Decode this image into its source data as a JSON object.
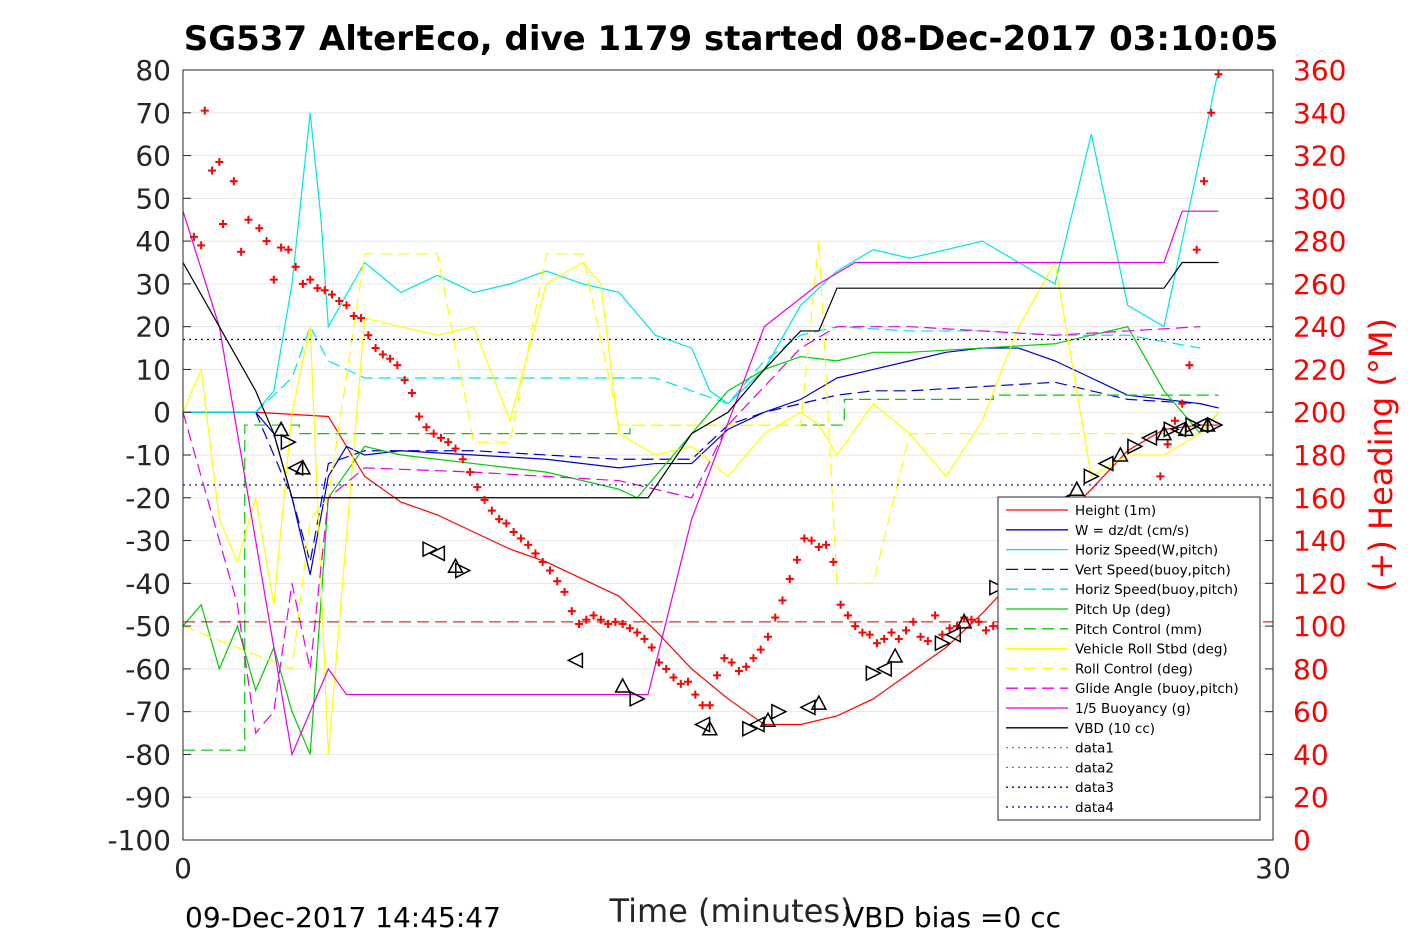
{
  "chart_data": {
    "type": "line",
    "title": "SG537 AlterEco, dive 1179 started 08-Dec-2017 03:10:05",
    "xlabel": "Time (minutes)",
    "ylabel_right": "(+) Heading (°M)",
    "xlim": [
      0,
      30
    ],
    "ylim_left": [
      -100,
      80
    ],
    "ylim_right": [
      0,
      360
    ],
    "x_ticks": [
      "0",
      "30"
    ],
    "y_ticks_left": [
      "80",
      "70",
      "60",
      "50",
      "40",
      "30",
      "20",
      "10",
      "0",
      "-10",
      "-20",
      "-30",
      "-40",
      "-50",
      "-60",
      "-70",
      "-80",
      "-90",
      "-100"
    ],
    "y_ticks_right": [
      "360",
      "340",
      "320",
      "300",
      "280",
      "260",
      "240",
      "220",
      "200",
      "180",
      "160",
      "140",
      "120",
      "100",
      "80",
      "60",
      "40",
      "20",
      "0"
    ],
    "grid": true,
    "legend_position": "lower-right",
    "footer_left": "09-Dec-2017 14:45:47",
    "footer_right": "VBD bias =0 cc",
    "colors": {
      "height": "#ff0000",
      "w": "#0000cc",
      "horiz_speed_w": "#00e5e5",
      "vert_speed_buoy": "#0000cc",
      "horiz_speed_buoy": "#00e5e5",
      "pitch_up": "#00cc00",
      "pitch_control": "#00cc00",
      "vehicle_roll": "#ffff00",
      "roll_control": "#ffff00",
      "glide_angle": "#e500e5",
      "buoyancy": "#e500e5",
      "vbd": "#000000",
      "data1": "#00cc00",
      "data2": "#00cc00",
      "data3": "#000080",
      "data4": "#000080",
      "heading": "#ff0000"
    },
    "series": [
      {
        "key": "height",
        "name": "Height (1m)",
        "style": "solid",
        "axis": "left",
        "x": [
          0,
          2,
          4,
          5,
          6,
          7,
          8,
          9,
          10,
          11,
          12,
          13,
          14,
          15,
          16,
          17,
          18,
          19,
          20,
          21,
          22,
          23,
          24,
          25,
          26,
          27,
          28,
          28.5
        ],
        "y": [
          0,
          0,
          -1,
          -15,
          -21,
          -24,
          -28,
          -32,
          -35,
          -39,
          -43,
          -51,
          -60,
          -67,
          -73,
          -73,
          -71,
          -67,
          -61,
          -55,
          -47,
          -38,
          -27,
          -18,
          -9,
          -4,
          -3,
          -3
        ]
      },
      {
        "key": "w",
        "name": "W = dz/dt (cm/s)",
        "style": "solid",
        "axis": "left",
        "x": [
          0,
          2,
          2.5,
          3,
          3.5,
          4,
          4.5,
          5,
          6,
          8,
          10,
          12,
          13,
          14,
          15,
          16,
          17,
          18,
          19,
          20,
          21,
          22,
          23,
          24,
          25,
          26,
          27,
          28,
          28.5
        ],
        "y": [
          0,
          0,
          -5,
          -20,
          -38,
          -15,
          -8,
          -10,
          -9,
          -10,
          -11,
          -13,
          -12,
          -12,
          -4,
          0,
          3,
          8,
          10,
          12,
          14,
          15,
          15,
          12,
          8,
          4,
          3,
          2,
          1
        ]
      },
      {
        "key": "horiz_speed_w",
        "name": "Horiz Speed(W,pitch)",
        "style": "solid",
        "axis": "left",
        "x": [
          0,
          1,
          2,
          2.5,
          3,
          3.5,
          3.8,
          4,
          5,
          6,
          7,
          8,
          9,
          10,
          11,
          12,
          13,
          14,
          14.5,
          15,
          16,
          17,
          18,
          19,
          20,
          21,
          22,
          23,
          24,
          25,
          26,
          27,
          28,
          28.5
        ],
        "y": [
          0,
          0,
          0,
          5,
          30,
          70,
          45,
          20,
          35,
          28,
          32,
          28,
          30,
          33,
          30,
          28,
          18,
          15,
          5,
          2,
          10,
          25,
          33,
          38,
          36,
          38,
          40,
          35,
          30,
          65,
          25,
          20,
          60,
          80
        ]
      },
      {
        "key": "vert_speed_buoy",
        "name": "Vert Speed(buoy,pitch)",
        "style": "dashed",
        "axis": "left",
        "x": [
          0,
          2,
          3,
          3.5,
          4,
          5,
          8,
          10,
          12,
          13,
          14,
          15,
          16,
          17,
          18,
          19,
          20,
          22,
          24,
          26,
          28,
          28.5
        ],
        "y": [
          0,
          0,
          -20,
          -35,
          -12,
          -9,
          -9,
          -10,
          -11,
          -11,
          -11,
          -3,
          0,
          2,
          4,
          5,
          5,
          6,
          7,
          3,
          2,
          1
        ]
      },
      {
        "key": "horiz_speed_buoy",
        "name": "Horiz Speed(buoy,pitch)",
        "style": "dashed",
        "axis": "left",
        "x": [
          0,
          2,
          3,
          3.5,
          4,
          5,
          8,
          10,
          12,
          13,
          14,
          15,
          16,
          17,
          18,
          20,
          22,
          24,
          26,
          28
        ],
        "y": [
          0,
          0,
          8,
          20,
          12,
          8,
          8,
          8,
          8,
          8,
          5,
          2,
          12,
          18,
          20,
          19,
          19,
          18,
          18,
          15
        ]
      },
      {
        "key": "pitch_up",
        "name": "Pitch Up (deg)",
        "style": "solid",
        "axis": "left",
        "x": [
          0,
          0.5,
          1,
          1.5,
          2,
          2.5,
          3,
          3.5,
          4,
          5,
          6,
          8,
          10,
          12,
          12.5,
          13,
          14,
          15,
          16,
          17,
          18,
          19,
          20,
          22,
          24,
          25,
          26,
          27,
          28,
          28.5
        ],
        "y": [
          -50,
          -45,
          -60,
          -50,
          -65,
          -55,
          -70,
          -80,
          -20,
          -8,
          -10,
          -12,
          -14,
          -18,
          -20,
          -15,
          -5,
          5,
          10,
          13,
          12,
          14,
          14,
          15,
          16,
          18,
          20,
          5,
          -5,
          0
        ]
      },
      {
        "key": "pitch_control",
        "name": "Pitch Control (mm)",
        "style": "dashed",
        "axis": "left",
        "x": [
          0,
          1.7,
          1.7,
          3.2,
          3.2,
          12.3,
          12.3,
          18.2,
          18.2,
          22.3,
          22.3,
          28.5
        ],
        "y": [
          -79,
          -79,
          -3,
          -3,
          -5,
          -5,
          -3,
          -3,
          3,
          3,
          4,
          4
        ]
      },
      {
        "key": "vehicle_roll",
        "name": "Vehicle Roll Stbd (deg)",
        "style": "solid",
        "axis": "left",
        "x": [
          0,
          0.5,
          1,
          1.5,
          2,
          2.5,
          3,
          3.5,
          4,
          5,
          6,
          7,
          8,
          9,
          10,
          11,
          11.5,
          12,
          13,
          14,
          15,
          16,
          17,
          17.5,
          18,
          19,
          20,
          21,
          22,
          23,
          24,
          25,
          26,
          27,
          28,
          28.5
        ],
        "y": [
          0,
          10,
          -25,
          -35,
          -20,
          -45,
          0,
          20,
          -80,
          22,
          20,
          18,
          20,
          -2,
          30,
          35,
          30,
          -5,
          -10,
          -8,
          -15,
          -5,
          0,
          -3,
          -10,
          2,
          -5,
          -15,
          -2,
          20,
          35,
          -15,
          -10,
          -10,
          -5,
          0
        ]
      },
      {
        "key": "roll_control",
        "name": "Roll Control (deg)",
        "style": "dashed",
        "axis": "left",
        "x": [
          0,
          3,
          3.5,
          4,
          5,
          6,
          7,
          8,
          9,
          10,
          11,
          12,
          13,
          14,
          15,
          16,
          17,
          17.5,
          18,
          19,
          20,
          21,
          22,
          24,
          26,
          28
        ],
        "y": [
          -50,
          -60,
          -25,
          -20,
          37,
          37,
          37,
          -7,
          -7,
          37,
          37,
          -3,
          -3,
          -3,
          -3,
          -3,
          -3,
          40,
          -40,
          -40,
          -5,
          -5,
          -5,
          -5,
          -5,
          -5
        ]
      },
      {
        "key": "glide_angle",
        "name": "Glide Angle (buoy,pitch)",
        "style": "dashed",
        "axis": "left",
        "x": [
          0,
          1,
          1.5,
          2,
          2.5,
          3,
          3.5,
          4,
          5,
          8,
          10,
          12,
          13,
          14,
          15,
          16,
          17,
          18,
          19,
          20,
          22,
          24,
          26,
          28
        ],
        "y": [
          0,
          -30,
          -45,
          -75,
          -70,
          -40,
          -60,
          -20,
          -13,
          -14,
          -15,
          -16,
          -18,
          -20,
          -3,
          6,
          15,
          20,
          20,
          20,
          19,
          18,
          19,
          20
        ]
      },
      {
        "key": "buoyancy",
        "name": "1/5 Buoyancy (g)",
        "style": "solid",
        "axis": "left",
        "x": [
          0,
          1,
          2,
          3,
          4,
          4.5,
          4.5,
          12.8,
          14,
          16,
          17.5,
          18.5,
          20,
          22,
          24,
          26,
          27,
          27.5,
          28,
          28.5
        ],
        "y": [
          47,
          20,
          -30,
          -80,
          -60,
          -66,
          -66,
          -66,
          -25,
          20,
          30,
          35,
          35,
          35,
          35,
          35,
          35,
          47,
          47,
          47
        ]
      },
      {
        "key": "vbd",
        "name": "VBD (10 cc)",
        "style": "solid",
        "axis": "left",
        "x": [
          0,
          1,
          2,
          2.5,
          3,
          4,
          5,
          8,
          10,
          12,
          12.8,
          14,
          15,
          15.5,
          16,
          17,
          17.5,
          18,
          20,
          22,
          24,
          26,
          27,
          27.5,
          28,
          28.5
        ],
        "y": [
          35,
          20,
          5,
          -5,
          -20,
          -20,
          -20,
          -20,
          -20,
          -20,
          -20,
          -5,
          0,
          5,
          10,
          19,
          19,
          29,
          29,
          29,
          29,
          29,
          29,
          35,
          35,
          35
        ]
      },
      {
        "key": "data1",
        "name": "data1",
        "style": "dotted",
        "axis": "left",
        "x": [],
        "y": []
      },
      {
        "key": "data2",
        "name": "data2",
        "style": "dotted",
        "axis": "left",
        "x": [],
        "y": []
      },
      {
        "key": "data3",
        "name": "data3",
        "style": "dotted",
        "axis": "left",
        "x": [
          0,
          30
        ],
        "y": [
          17,
          17
        ]
      },
      {
        "key": "data4",
        "name": "data4",
        "style": "dotted",
        "axis": "left",
        "x": [
          0,
          30
        ],
        "y": [
          -17,
          -17
        ]
      }
    ],
    "reference_lines": [
      {
        "key": "heading_ref",
        "axis": "right",
        "y": 102,
        "style": "dashed",
        "color": "#cc0000"
      }
    ],
    "heading": {
      "name": "(+) Heading",
      "axis": "right",
      "marker": "plus",
      "x": [
        0.3,
        0.5,
        0.6,
        0.8,
        1.0,
        1.1,
        1.4,
        1.6,
        1.8,
        2.1,
        2.3,
        2.5,
        2.7,
        2.9,
        3.1,
        3.3,
        3.5,
        3.7,
        3.9,
        4.1,
        4.3,
        4.5,
        4.7,
        4.9,
        5.1,
        5.3,
        5.5,
        5.7,
        5.9,
        6.1,
        6.3,
        6.5,
        6.7,
        6.9,
        7.1,
        7.3,
        7.5,
        7.7,
        7.9,
        8.1,
        8.3,
        8.5,
        8.7,
        8.9,
        9.1,
        9.3,
        9.5,
        9.7,
        9.9,
        10.1,
        10.3,
        10.5,
        10.7,
        10.9,
        11.1,
        11.3,
        11.5,
        11.7,
        11.9,
        12.1,
        12.3,
        12.5,
        12.7,
        12.9,
        13.1,
        13.3,
        13.5,
        13.7,
        13.9,
        14.1,
        14.3,
        14.5,
        14.7,
        14.9,
        15.1,
        15.3,
        15.5,
        15.7,
        15.9,
        16.1,
        16.3,
        16.5,
        16.7,
        16.9,
        17.1,
        17.3,
        17.5,
        17.7,
        17.9,
        18.1,
        18.3,
        18.5,
        18.7,
        18.9,
        19.1,
        19.3,
        19.5,
        19.7,
        19.9,
        20.1,
        20.3,
        20.5,
        20.7,
        20.9,
        21.1,
        21.3,
        21.5,
        21.7,
        21.9,
        22.1,
        22.3,
        22.5,
        22.7,
        22.9,
        23.1,
        23.3,
        23.5,
        23.7,
        23.9,
        24.1,
        24.3,
        24.5,
        24.7,
        24.9,
        25.1,
        25.3,
        25.5,
        25.7,
        25.9,
        26.1,
        26.3,
        26.5,
        26.7,
        26.9,
        27.1,
        27.3,
        27.5,
        27.7,
        27.9,
        28.1,
        28.3,
        28.5
      ],
      "y": [
        282,
        278,
        341,
        313,
        317,
        288,
        308,
        275,
        290,
        286,
        280,
        262,
        277,
        276,
        268,
        260,
        262,
        258,
        257,
        255,
        252,
        250,
        245,
        244,
        236,
        230,
        227,
        225,
        222,
        215,
        209,
        198,
        193,
        190,
        188,
        186,
        183,
        178,
        172,
        165,
        159,
        154,
        150,
        148,
        144,
        141,
        138,
        134,
        130,
        126,
        121,
        116,
        107,
        101,
        103,
        105,
        103,
        101,
        102,
        101,
        99,
        97,
        94,
        90,
        83,
        80,
        76,
        73,
        74,
        68,
        63,
        63,
        77,
        85,
        83,
        79,
        81,
        85,
        89,
        95,
        104,
        112,
        122,
        131,
        141,
        140,
        137,
        138,
        130,
        110,
        105,
        100,
        97,
        96,
        92,
        94,
        97,
        94,
        98,
        102,
        95,
        93,
        105,
        96,
        99,
        100,
        104,
        103,
        102,
        98,
        100,
        99,
        95,
        92,
        90,
        91,
        88,
        100,
        104,
        102,
        97,
        91,
        94,
        98,
        96,
        95,
        99,
        101,
        110,
        121,
        128,
        138,
        158,
        170,
        185,
        196,
        204,
        222,
        276,
        308,
        340,
        358
      ]
    },
    "markers": {
      "triangle_x": [
        2.7,
        2.9,
        3.1,
        3.3,
        6.8,
        7.0,
        7.5,
        7.7,
        10.8,
        12.1,
        12.5,
        14.3,
        14.5,
        15.6,
        15.8,
        16.1,
        16.4,
        17.2,
        17.5,
        19.0,
        19.3,
        19.6,
        20.9,
        21.2,
        21.5,
        22.4,
        23.0,
        23.4,
        23.8,
        24.2,
        24.6,
        25.0,
        25.4,
        25.8,
        26.2,
        26.6,
        27.0,
        27.2,
        27.4,
        27.6,
        27.8,
        28.0,
        28.2,
        28.4
      ],
      "triangle_y": [
        -4,
        -7,
        -13,
        -13,
        -32,
        -33,
        -36,
        -37,
        -58,
        -64,
        -67,
        -73,
        -74,
        -74,
        -73,
        -72,
        -70,
        -69,
        -68,
        -61,
        -60,
        -57,
        -54,
        -52,
        -49,
        -41,
        -37,
        -30,
        -25,
        -21,
        -18,
        -15,
        -12,
        -10,
        -8,
        -6,
        -5,
        -4,
        -4,
        -4,
        -3,
        -3,
        -3,
        -3
      ]
    }
  }
}
